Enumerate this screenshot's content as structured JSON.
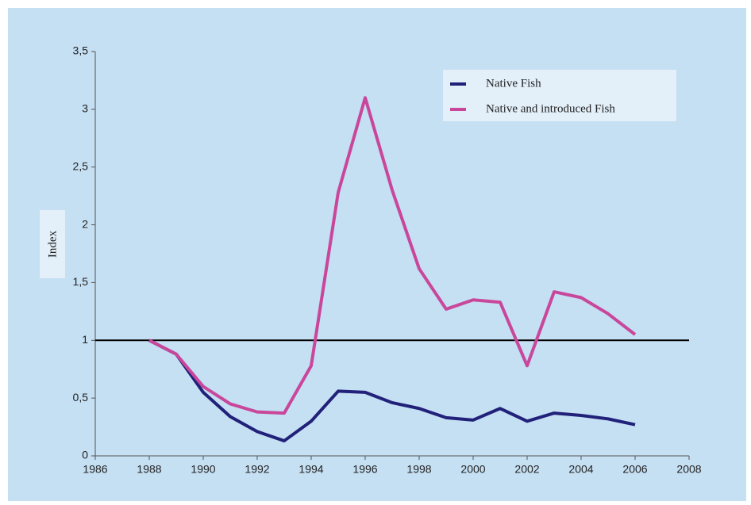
{
  "chart_data": {
    "type": "line",
    "y_label": "Index",
    "x": [
      1988,
      1989,
      1990,
      1991,
      1992,
      1993,
      1994,
      1995,
      1996,
      1997,
      1998,
      1999,
      2000,
      2001,
      2002,
      2003,
      2004,
      2005,
      2006
    ],
    "series": [
      {
        "name": "Native Fish",
        "color": "#21217a",
        "values": [
          1.0,
          0.88,
          0.55,
          0.34,
          0.21,
          0.13,
          0.3,
          0.56,
          0.55,
          0.46,
          0.41,
          0.33,
          0.31,
          0.41,
          0.3,
          0.37,
          0.35,
          0.32,
          0.27
        ]
      },
      {
        "name": "Native and introduced Fish",
        "color": "#c9479b",
        "values": [
          1.0,
          0.88,
          0.6,
          0.45,
          0.38,
          0.37,
          0.78,
          2.28,
          3.1,
          2.3,
          1.62,
          1.27,
          1.35,
          1.33,
          0.78,
          1.42,
          1.37,
          1.23,
          1.05
        ]
      }
    ],
    "reference_line": 1,
    "reference_color": "#000000",
    "xlim": [
      1986,
      2008
    ],
    "xticks": [
      1986,
      1988,
      1990,
      1992,
      1994,
      1996,
      1998,
      2000,
      2002,
      2004,
      2006,
      2008
    ],
    "ylim": [
      0,
      3.5
    ],
    "yticks": [
      0,
      {
        "value": 0.5,
        "label": "0,5"
      },
      1,
      {
        "value": 1.5,
        "label": "1,5"
      },
      2,
      {
        "value": 2.5,
        "label": "2,5"
      },
      3,
      {
        "value": 3.5,
        "label": "3,5"
      }
    ],
    "grid": false,
    "legend": "upper right"
  }
}
